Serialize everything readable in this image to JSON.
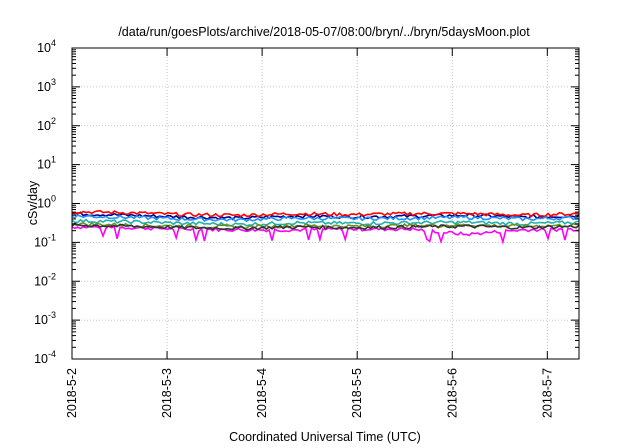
{
  "chart_data": {
    "type": "line",
    "title": "/data/run/goesPlots/archive/2018-05-07/08:00/bryn/../bryn/5daysMoon.plot",
    "xlabel": "Coordinated Universal Time (UTC)",
    "ylabel": "cSv/day",
    "y_scale": "log",
    "ylim": [
      0.0001,
      10000
    ],
    "y_ticks": [
      {
        "value": 0.0001,
        "base": "10",
        "exp": "-4"
      },
      {
        "value": 0.001,
        "base": "10",
        "exp": "-3"
      },
      {
        "value": 0.01,
        "base": "10",
        "exp": "-2"
      },
      {
        "value": 0.1,
        "base": "10",
        "exp": "-1"
      },
      {
        "value": 1,
        "base": "10",
        "exp": "0"
      },
      {
        "value": 10,
        "base": "10",
        "exp": "1"
      },
      {
        "value": 100,
        "base": "10",
        "exp": "2"
      },
      {
        "value": 1000,
        "base": "10",
        "exp": "3"
      },
      {
        "value": 10000,
        "base": "10",
        "exp": "4"
      }
    ],
    "x_ticks": [
      "2018-5-2",
      "2018-5-3",
      "2018-5-4",
      "2018-5-5",
      "2018-5-6",
      "2018-5-7"
    ],
    "xlim": [
      "2018-05-02 00:00",
      "2018-05-07 08:00"
    ],
    "grid": true,
    "legend": "none",
    "series": [
      {
        "color": "#ff00ff",
        "values": [
          0.25,
          0.24,
          0.22,
          0.21,
          0.21,
          0.22,
          0.22,
          0.16,
          0.21,
          0.22
        ]
      },
      {
        "color": "#00008b",
        "values": [
          0.55,
          0.5,
          0.45,
          0.42,
          0.48,
          0.46,
          0.47,
          0.5,
          0.45,
          0.48
        ]
      },
      {
        "color": "#ff0000",
        "values": [
          0.62,
          0.58,
          0.52,
          0.5,
          0.55,
          0.52,
          0.55,
          0.55,
          0.5,
          0.55
        ]
      },
      {
        "color": "#1e90ff",
        "values": [
          0.48,
          0.44,
          0.4,
          0.38,
          0.42,
          0.41,
          0.42,
          0.44,
          0.4,
          0.43
        ]
      },
      {
        "color": "#20b2aa",
        "values": [
          0.36,
          0.34,
          0.31,
          0.29,
          0.32,
          0.31,
          0.32,
          0.33,
          0.3,
          0.33
        ]
      },
      {
        "color": "#6b8e23",
        "values": [
          0.3,
          0.28,
          0.26,
          0.25,
          0.27,
          0.26,
          0.27,
          0.28,
          0.26,
          0.28
        ]
      },
      {
        "color": "#333333",
        "values": [
          0.28,
          0.26,
          0.24,
          0.23,
          0.25,
          0.24,
          0.25,
          0.26,
          0.24,
          0.26
        ]
      }
    ]
  }
}
